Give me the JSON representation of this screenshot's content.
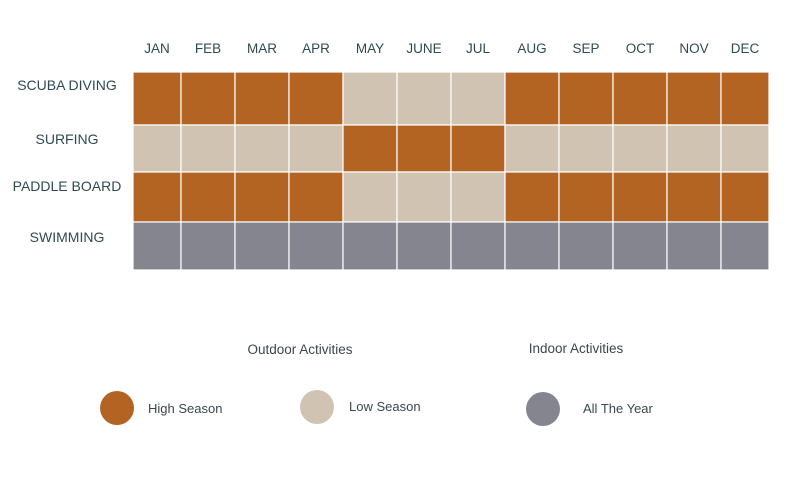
{
  "chart_data": {
    "type": "heatmap",
    "title": "",
    "columns": [
      "JAN",
      "FEB",
      "MAR",
      "APR",
      "MAY",
      "JUNE",
      "JUL",
      "AUG",
      "SEP",
      "OCT",
      "NOV",
      "DEC"
    ],
    "rows": [
      {
        "name": "SCUBA DIVING",
        "values": [
          "high",
          "high",
          "high",
          "high",
          "low",
          "low",
          "low",
          "high",
          "high",
          "high",
          "high",
          "high"
        ]
      },
      {
        "name": "SURFING",
        "values": [
          "low",
          "low",
          "low",
          "low",
          "high",
          "high",
          "high",
          "low",
          "low",
          "low",
          "low",
          "low"
        ]
      },
      {
        "name": "PADDLE BOARD",
        "values": [
          "high",
          "high",
          "high",
          "high",
          "low",
          "low",
          "low",
          "high",
          "high",
          "high",
          "high",
          "high"
        ]
      },
      {
        "name": "SWIMMING",
        "values": [
          "all",
          "all",
          "all",
          "all",
          "all",
          "all",
          "all",
          "all",
          "all",
          "all",
          "all",
          "all"
        ]
      }
    ],
    "legend": {
      "groups": [
        {
          "title": "Outdoor Activities"
        },
        {
          "title": "Indoor Activities"
        }
      ],
      "items": [
        {
          "key": "high",
          "label": "High Season",
          "color": "#b46422"
        },
        {
          "key": "low",
          "label": "Low Season",
          "color": "#d1c3b2"
        },
        {
          "key": "all",
          "label": "All The Year",
          "color": "#84858f"
        }
      ]
    }
  }
}
